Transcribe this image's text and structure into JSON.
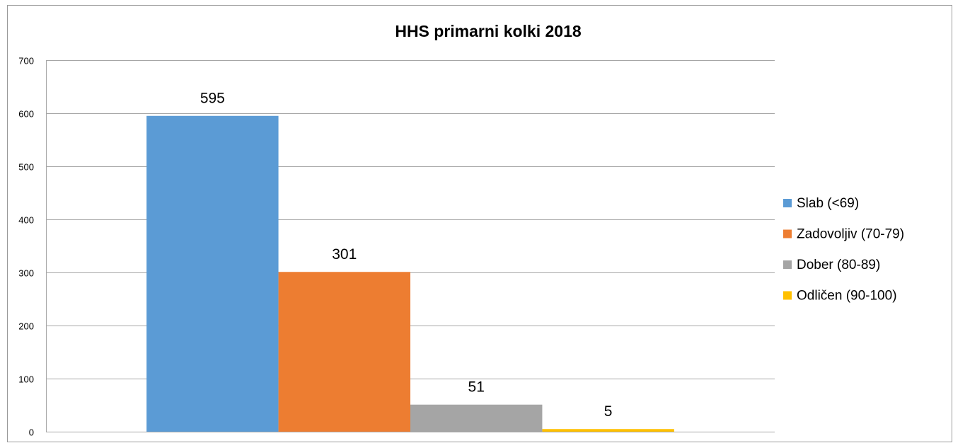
{
  "chart_data": {
    "type": "bar",
    "title": "HHS primarni kolki 2018",
    "categories": [
      null
    ],
    "series": [
      {
        "name": "Slab (<69)",
        "color": "#5b9bd5",
        "values": [
          595
        ]
      },
      {
        "name": "Zadovoljiv (70-79)",
        "color": "#ed7d31",
        "values": [
          301
        ]
      },
      {
        "name": "Dober (80-89)",
        "color": "#a5a5a5",
        "values": [
          51
        ]
      },
      {
        "name": "Odličen (90-100)",
        "color": "#ffc000",
        "values": [
          5
        ]
      }
    ],
    "ylim": [
      0,
      700
    ],
    "yticks": [
      0,
      100,
      200,
      300,
      400,
      500,
      600,
      700
    ],
    "grid": true,
    "legend": "right",
    "data_labels": true
  }
}
